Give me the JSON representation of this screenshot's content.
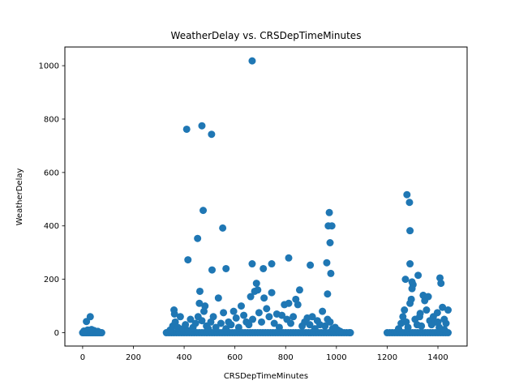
{
  "chart_data": {
    "type": "scatter",
    "title": "WeatherDelay vs. CRSDepTimeMinutes",
    "xlabel": "CRSDepTimeMinutes",
    "ylabel": "WeatherDelay",
    "xlim": [
      -70,
      1515
    ],
    "ylim": [
      -50,
      1070
    ],
    "xticks": [
      0,
      200,
      400,
      600,
      800,
      1000,
      1200,
      1400
    ],
    "yticks": [
      0,
      200,
      400,
      600,
      800,
      1000
    ],
    "grid": false,
    "marker_color": "#1f77b4",
    "points": [
      [
        0,
        0
      ],
      [
        5,
        0
      ],
      [
        10,
        0
      ],
      [
        15,
        0
      ],
      [
        20,
        0
      ],
      [
        25,
        0
      ],
      [
        30,
        0
      ],
      [
        35,
        0
      ],
      [
        40,
        0
      ],
      [
        45,
        0
      ],
      [
        50,
        0
      ],
      [
        55,
        0
      ],
      [
        60,
        0
      ],
      [
        65,
        0
      ],
      [
        70,
        0
      ],
      [
        75,
        0
      ],
      [
        15,
        42
      ],
      [
        30,
        60
      ],
      [
        20,
        10
      ],
      [
        45,
        8
      ],
      [
        60,
        5
      ],
      [
        5,
        6
      ],
      [
        35,
        12
      ],
      [
        330,
        0
      ],
      [
        340,
        0
      ],
      [
        350,
        0
      ],
      [
        360,
        0
      ],
      [
        370,
        0
      ],
      [
        380,
        0
      ],
      [
        390,
        0
      ],
      [
        400,
        0
      ],
      [
        410,
        0
      ],
      [
        420,
        0
      ],
      [
        430,
        0
      ],
      [
        440,
        0
      ],
      [
        450,
        0
      ],
      [
        460,
        0
      ],
      [
        470,
        0
      ],
      [
        480,
        0
      ],
      [
        490,
        0
      ],
      [
        500,
        0
      ],
      [
        510,
        0
      ],
      [
        520,
        0
      ],
      [
        530,
        0
      ],
      [
        540,
        0
      ],
      [
        550,
        0
      ],
      [
        560,
        0
      ],
      [
        570,
        0
      ],
      [
        580,
        0
      ],
      [
        590,
        0
      ],
      [
        600,
        0
      ],
      [
        610,
        0
      ],
      [
        620,
        0
      ],
      [
        630,
        0
      ],
      [
        640,
        0
      ],
      [
        650,
        0
      ],
      [
        660,
        0
      ],
      [
        670,
        0
      ],
      [
        680,
        0
      ],
      [
        690,
        0
      ],
      [
        700,
        0
      ],
      [
        710,
        0
      ],
      [
        720,
        0
      ],
      [
        730,
        0
      ],
      [
        740,
        0
      ],
      [
        750,
        0
      ],
      [
        760,
        0
      ],
      [
        770,
        0
      ],
      [
        780,
        0
      ],
      [
        790,
        0
      ],
      [
        800,
        0
      ],
      [
        810,
        0
      ],
      [
        820,
        0
      ],
      [
        830,
        0
      ],
      [
        840,
        0
      ],
      [
        850,
        0
      ],
      [
        860,
        0
      ],
      [
        870,
        0
      ],
      [
        880,
        0
      ],
      [
        890,
        0
      ],
      [
        900,
        0
      ],
      [
        910,
        0
      ],
      [
        920,
        0
      ],
      [
        930,
        0
      ],
      [
        940,
        0
      ],
      [
        950,
        0
      ],
      [
        960,
        0
      ],
      [
        970,
        0
      ],
      [
        980,
        0
      ],
      [
        990,
        0
      ],
      [
        1000,
        0
      ],
      [
        1010,
        0
      ],
      [
        1020,
        0
      ],
      [
        1030,
        0
      ],
      [
        1040,
        0
      ],
      [
        1050,
        0
      ],
      [
        1055,
        0
      ],
      [
        345,
        10
      ],
      [
        355,
        25
      ],
      [
        365,
        40
      ],
      [
        360,
        85
      ],
      [
        362,
        70
      ],
      [
        375,
        20
      ],
      [
        385,
        60
      ],
      [
        395,
        15
      ],
      [
        405,
        30
      ],
      [
        415,
        8
      ],
      [
        425,
        50
      ],
      [
        435,
        20
      ],
      [
        445,
        35
      ],
      [
        455,
        60
      ],
      [
        460,
        110
      ],
      [
        462,
        155
      ],
      [
        470,
        45
      ],
      [
        478,
        80
      ],
      [
        482,
        100
      ],
      [
        488,
        25
      ],
      [
        495,
        15
      ],
      [
        505,
        40
      ],
      [
        515,
        60
      ],
      [
        525,
        20
      ],
      [
        535,
        130
      ],
      [
        545,
        35
      ],
      [
        555,
        75
      ],
      [
        565,
        15
      ],
      [
        575,
        40
      ],
      [
        585,
        30
      ],
      [
        595,
        80
      ],
      [
        605,
        55
      ],
      [
        615,
        20
      ],
      [
        625,
        100
      ],
      [
        635,
        65
      ],
      [
        645,
        40
      ],
      [
        655,
        30
      ],
      [
        662,
        135
      ],
      [
        670,
        50
      ],
      [
        678,
        155
      ],
      [
        685,
        185
      ],
      [
        690,
        160
      ],
      [
        695,
        75
      ],
      [
        705,
        40
      ],
      [
        715,
        130
      ],
      [
        725,
        90
      ],
      [
        735,
        60
      ],
      [
        745,
        150
      ],
      [
        755,
        35
      ],
      [
        765,
        70
      ],
      [
        775,
        20
      ],
      [
        785,
        65
      ],
      [
        795,
        105
      ],
      [
        805,
        50
      ],
      [
        812,
        110
      ],
      [
        820,
        35
      ],
      [
        830,
        60
      ],
      [
        840,
        125
      ],
      [
        848,
        105
      ],
      [
        855,
        160
      ],
      [
        865,
        25
      ],
      [
        875,
        40
      ],
      [
        885,
        55
      ],
      [
        895,
        30
      ],
      [
        905,
        60
      ],
      [
        915,
        15
      ],
      [
        925,
        45
      ],
      [
        935,
        30
      ],
      [
        945,
        80
      ],
      [
        955,
        25
      ],
      [
        965,
        50
      ],
      [
        975,
        40
      ],
      [
        985,
        15
      ],
      [
        995,
        20
      ],
      [
        1005,
        10
      ],
      [
        1015,
        5
      ],
      [
        410,
        762
      ],
      [
        470,
        775
      ],
      [
        508,
        743
      ],
      [
        668,
        1018
      ],
      [
        475,
        458
      ],
      [
        552,
        392
      ],
      [
        453,
        353
      ],
      [
        415,
        273
      ],
      [
        510,
        235
      ],
      [
        565,
        240
      ],
      [
        668,
        258
      ],
      [
        712,
        240
      ],
      [
        745,
        258
      ],
      [
        812,
        280
      ],
      [
        897,
        253
      ],
      [
        962,
        262
      ],
      [
        968,
        400
      ],
      [
        972,
        450
      ],
      [
        975,
        337
      ],
      [
        978,
        222
      ],
      [
        982,
        400
      ],
      [
        965,
        145
      ],
      [
        1200,
        0
      ],
      [
        1210,
        0
      ],
      [
        1220,
        0
      ],
      [
        1230,
        0
      ],
      [
        1240,
        0
      ],
      [
        1250,
        0
      ],
      [
        1260,
        0
      ],
      [
        1270,
        0
      ],
      [
        1280,
        0
      ],
      [
        1290,
        0
      ],
      [
        1300,
        0
      ],
      [
        1310,
        0
      ],
      [
        1320,
        0
      ],
      [
        1330,
        0
      ],
      [
        1340,
        0
      ],
      [
        1350,
        0
      ],
      [
        1360,
        0
      ],
      [
        1370,
        0
      ],
      [
        1380,
        0
      ],
      [
        1390,
        0
      ],
      [
        1400,
        0
      ],
      [
        1410,
        0
      ],
      [
        1420,
        0
      ],
      [
        1430,
        0
      ],
      [
        1440,
        0
      ],
      [
        1245,
        15
      ],
      [
        1255,
        35
      ],
      [
        1262,
        60
      ],
      [
        1268,
        85
      ],
      [
        1275,
        40
      ],
      [
        1282,
        20
      ],
      [
        1290,
        110
      ],
      [
        1295,
        125
      ],
      [
        1298,
        165
      ],
      [
        1302,
        180
      ],
      [
        1310,
        50
      ],
      [
        1318,
        30
      ],
      [
        1322,
        215
      ],
      [
        1328,
        60
      ],
      [
        1335,
        25
      ],
      [
        1342,
        140
      ],
      [
        1348,
        120
      ],
      [
        1355,
        85
      ],
      [
        1362,
        135
      ],
      [
        1368,
        45
      ],
      [
        1375,
        30
      ],
      [
        1382,
        60
      ],
      [
        1390,
        40
      ],
      [
        1398,
        75
      ],
      [
        1405,
        20
      ],
      [
        1412,
        185
      ],
      [
        1418,
        95
      ],
      [
        1425,
        50
      ],
      [
        1432,
        35
      ],
      [
        1440,
        85
      ],
      [
        1272,
        200
      ],
      [
        1278,
        517
      ],
      [
        1288,
        488
      ],
      [
        1290,
        382
      ],
      [
        1290,
        258
      ],
      [
        1298,
        190
      ],
      [
        1408,
        205
      ],
      [
        1330,
        72
      ],
      [
        1400,
        40
      ],
      [
        1425,
        12
      ]
    ]
  }
}
